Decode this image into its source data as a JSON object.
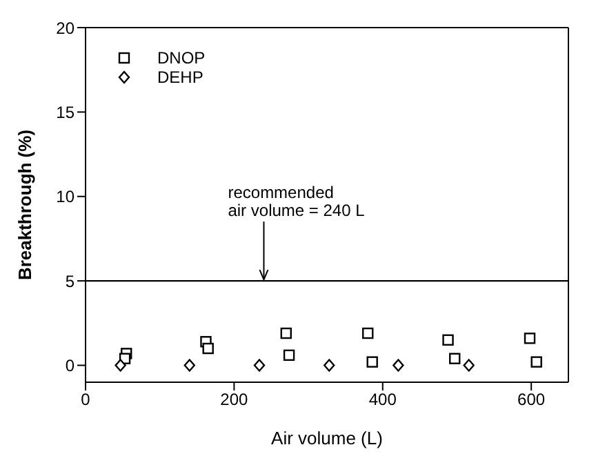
{
  "chart_data": {
    "type": "scatter",
    "xlabel": "Air volume (L)",
    "ylabel": "Breakthrough (%)",
    "xlim": [
      0,
      650
    ],
    "xticks": [
      0,
      200,
      400,
      600
    ],
    "ylim": [
      -1,
      20
    ],
    "yticks": [
      0,
      5,
      10,
      15,
      20
    ],
    "grid": false,
    "legend": "top left",
    "series": [
      {
        "name": "DNOP",
        "color": "#000000",
        "marker": "square",
        "x": [
          55,
          53,
          162,
          165,
          270,
          274,
          380,
          386,
          488,
          497,
          598,
          607
        ],
        "values": [
          0.7,
          0.4,
          1.4,
          1.0,
          1.9,
          0.6,
          1.9,
          0.2,
          1.5,
          0.4,
          1.6,
          0.2
        ]
      },
      {
        "name": "DEHP",
        "color": "#000000",
        "marker": "diamond",
        "x": [
          47,
          140,
          234,
          328,
          421,
          516
        ],
        "values": [
          0,
          0,
          0,
          0,
          0,
          0
        ]
      }
    ],
    "ref_lines": [
      {
        "axis": "y",
        "value": 5,
        "color": "#000000"
      }
    ],
    "annotations": [
      {
        "text": "recommended\nair volume = 240 L",
        "x": 240,
        "y": 5
      }
    ]
  }
}
